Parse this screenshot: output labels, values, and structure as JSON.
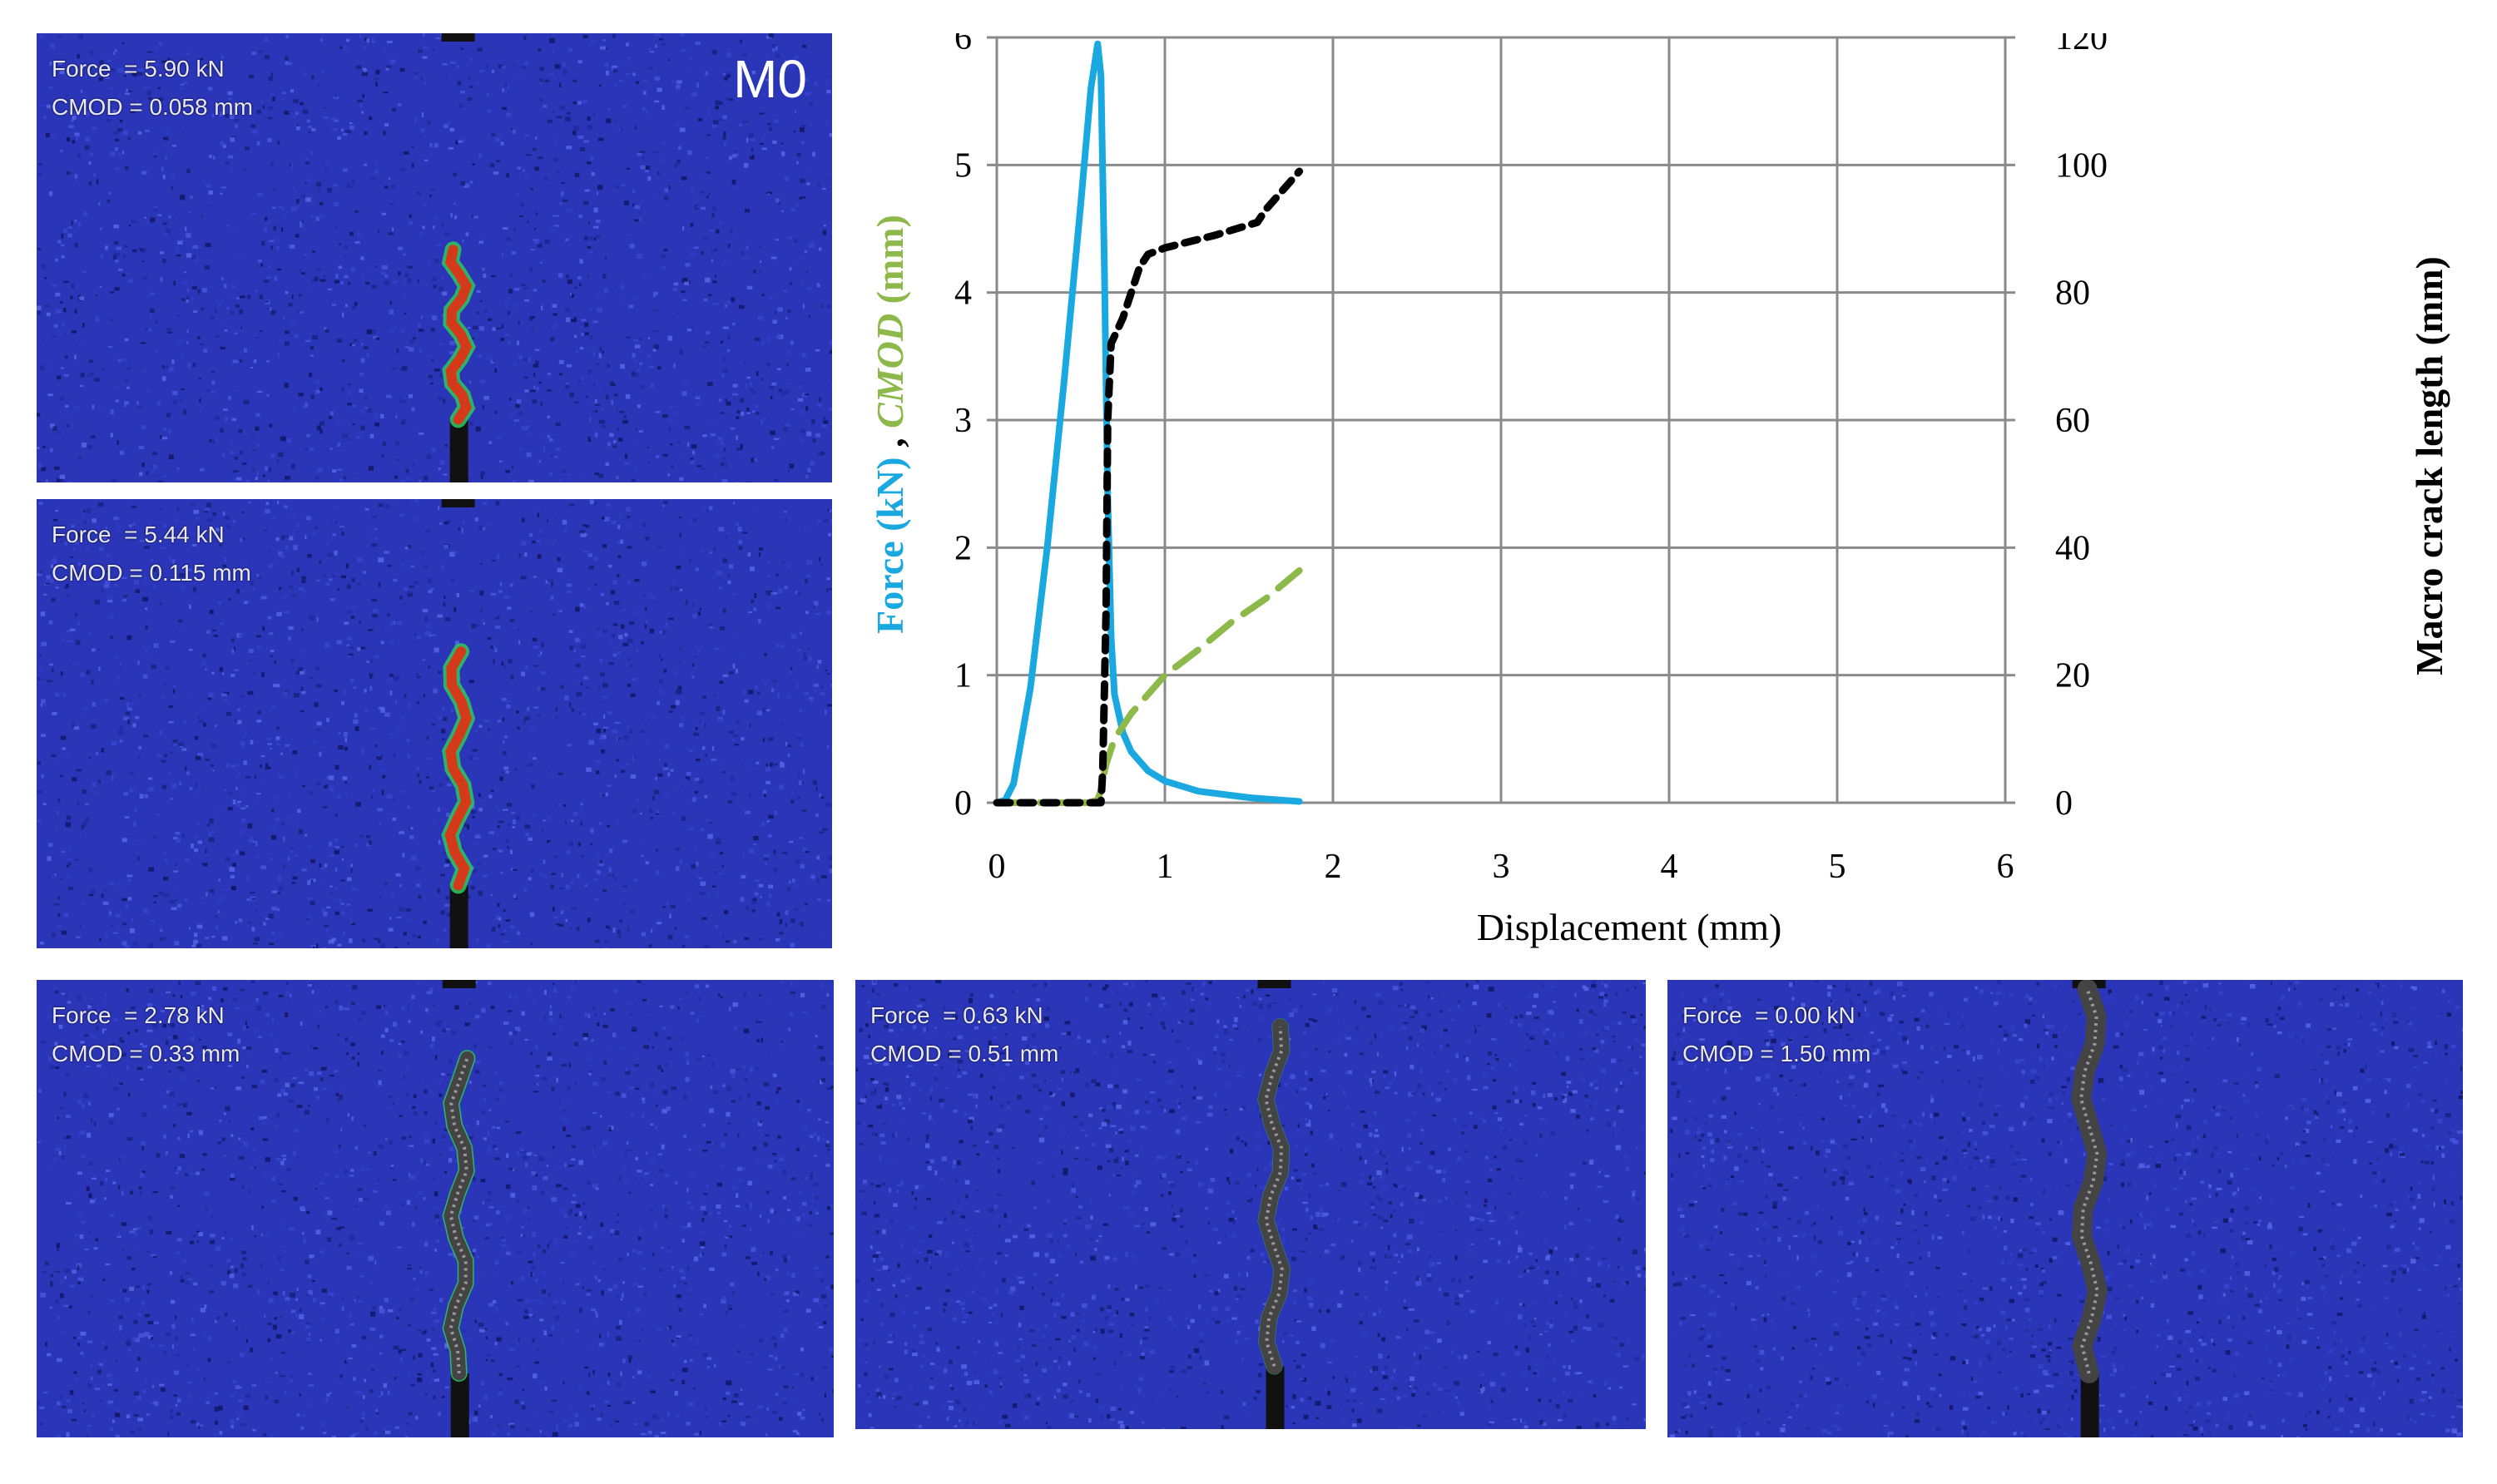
{
  "panels": [
    {
      "id": "p1",
      "force": "Force  = 5.90 kN",
      "cmod": "CMOD = 0.058 mm",
      "tag": "M0",
      "crack_extent": 0.45,
      "crack_open": 0.0
    },
    {
      "id": "p2",
      "force": "Force  = 5.44 kN",
      "cmod": "CMOD = 0.115 mm",
      "tag": "",
      "crack_extent": 0.62,
      "crack_open": 0.0
    },
    {
      "id": "p3",
      "force": "Force  = 2.78 kN",
      "cmod": "CMOD = 0.33 mm",
      "tag": "",
      "crack_extent": 0.82,
      "crack_open": 0.4
    },
    {
      "id": "p4",
      "force": "Force  = 0.63 kN",
      "cmod": "CMOD = 0.51 mm",
      "tag": "",
      "crack_extent": 0.9,
      "crack_open": 0.6
    },
    {
      "id": "p5",
      "force": "Force  = 0.00 kN",
      "cmod": "CMOD = 1.50 mm",
      "tag": "",
      "crack_extent": 1.0,
      "crack_open": 1.0
    }
  ],
  "chart_data": {
    "type": "line",
    "xlabel": "Displacement (mm)",
    "ylabel_left_parts": [
      "Force  (kN)",
      " ,  ",
      "CMOD",
      " (mm)"
    ],
    "ylabel_right": "Macro crack length  (mm)",
    "xlim": [
      0,
      6
    ],
    "ylim_left": [
      0,
      6
    ],
    "ylim_right": [
      0,
      120
    ],
    "x_ticks": [
      "0",
      "1",
      "2",
      "3",
      "4",
      "5",
      "6"
    ],
    "y_ticks_left": [
      "0",
      "1",
      "2",
      "3",
      "4",
      "5",
      "6"
    ],
    "y_ticks_right": [
      "0",
      "20",
      "40",
      "60",
      "80",
      "100",
      "120"
    ],
    "colors": {
      "force": "#1aa8e0",
      "cmod": "#8db84a",
      "crack": "#000000",
      "grid": "#8a8a8a"
    },
    "series": [
      {
        "name": "Force",
        "axis": "left",
        "style": "solid",
        "x": [
          0,
          0.05,
          0.1,
          0.2,
          0.3,
          0.4,
          0.5,
          0.56,
          0.6,
          0.62,
          0.64,
          0.66,
          0.68,
          0.7,
          0.75,
          0.8,
          0.9,
          1.0,
          1.2,
          1.5,
          1.8
        ],
        "y": [
          0,
          0.02,
          0.15,
          0.9,
          2.0,
          3.3,
          4.7,
          5.6,
          5.95,
          5.7,
          4.2,
          2.4,
          1.3,
          0.85,
          0.55,
          0.4,
          0.25,
          0.17,
          0.09,
          0.04,
          0.01
        ]
      },
      {
        "name": "CMOD",
        "axis": "left",
        "style": "dash",
        "x": [
          0,
          0.55,
          0.6,
          0.62,
          0.65,
          0.7,
          0.8,
          1.0,
          1.2,
          1.4,
          1.6,
          1.8
        ],
        "y": [
          0,
          0,
          0.02,
          0.1,
          0.3,
          0.5,
          0.7,
          1.0,
          1.2,
          1.42,
          1.6,
          1.82
        ]
      },
      {
        "name": "Macro crack length",
        "axis": "right",
        "style": "dot",
        "x": [
          0,
          0.62,
          0.63,
          0.65,
          0.66,
          0.68,
          0.75,
          0.85,
          0.9,
          1.0,
          1.3,
          1.55,
          1.6,
          1.8
        ],
        "y": [
          0,
          0,
          5,
          30,
          60,
          72,
          76,
          84,
          86,
          87,
          89,
          91,
          93,
          99
        ]
      }
    ]
  }
}
